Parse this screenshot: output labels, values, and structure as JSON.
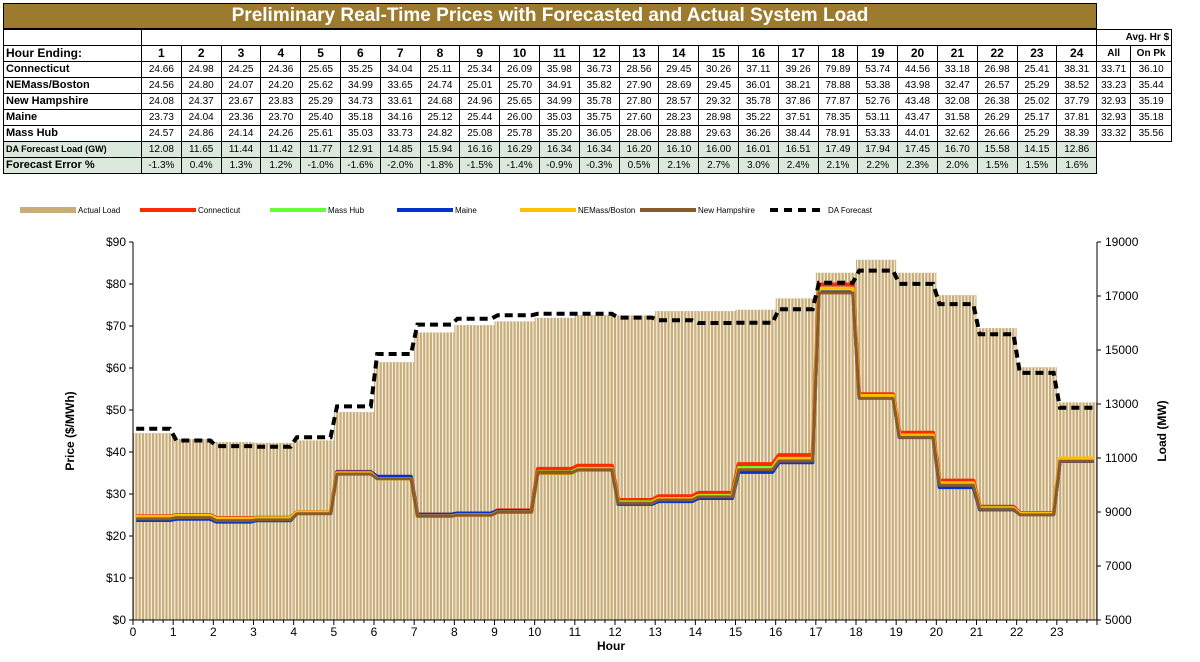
{
  "title": "Preliminary Real-Time Prices with Forecasted and Actual System Load",
  "table": {
    "avg_header": "Avg. Hr $",
    "hour_label": "Hour Ending:",
    "hours": [
      "1",
      "2",
      "3",
      "4",
      "5",
      "6",
      "7",
      "8",
      "9",
      "10",
      "11",
      "12",
      "13",
      "14",
      "15",
      "16",
      "17",
      "18",
      "19",
      "20",
      "21",
      "22",
      "23",
      "24"
    ],
    "avg_cols": [
      "All",
      "On Pk"
    ],
    "rows": [
      {
        "label": "Connecticut",
        "values": [
          "24.66",
          "24.98",
          "24.25",
          "24.36",
          "25.65",
          "35.25",
          "34.04",
          "25.11",
          "25.34",
          "26.09",
          "35.98",
          "36.73",
          "28.56",
          "29.45",
          "30.26",
          "37.11",
          "39.26",
          "79.89",
          "53.74",
          "44.56",
          "33.18",
          "26.98",
          "25.41",
          "38.31"
        ],
        "avg": [
          "33.71",
          "36.10"
        ]
      },
      {
        "label": "NEMass/Boston",
        "values": [
          "24.56",
          "24.80",
          "24.07",
          "24.20",
          "25.62",
          "34.99",
          "33.65",
          "24.74",
          "25.01",
          "25.70",
          "34.91",
          "35.82",
          "27.90",
          "28.69",
          "29.45",
          "36.01",
          "38.21",
          "78.88",
          "53.38",
          "43.98",
          "32.47",
          "26.57",
          "25.29",
          "38.52"
        ],
        "avg": [
          "33.23",
          "35.44"
        ]
      },
      {
        "label": "New Hampshire",
        "values": [
          "24.08",
          "24.37",
          "23.67",
          "23.83",
          "25.29",
          "34.73",
          "33.61",
          "24.68",
          "24.96",
          "25.65",
          "34.99",
          "35.78",
          "27.80",
          "28.57",
          "29.32",
          "35.78",
          "37.86",
          "77.87",
          "52.76",
          "43.48",
          "32.08",
          "26.38",
          "25.02",
          "37.79"
        ],
        "avg": [
          "32.93",
          "35.19"
        ]
      },
      {
        "label": "Maine",
        "values": [
          "23.73",
          "24.04",
          "23.36",
          "23.70",
          "25.40",
          "35.18",
          "34.16",
          "25.12",
          "25.44",
          "26.00",
          "35.03",
          "35.75",
          "27.60",
          "28.23",
          "28.98",
          "35.22",
          "37.51",
          "78.35",
          "53.11",
          "43.47",
          "31.58",
          "26.29",
          "25.17",
          "37.81"
        ],
        "avg": [
          "32.93",
          "35.18"
        ]
      },
      {
        "label": "Mass Hub",
        "values": [
          "24.57",
          "24.86",
          "24.14",
          "24.26",
          "25.61",
          "35.03",
          "33.73",
          "24.82",
          "25.08",
          "25.78",
          "35.20",
          "36.05",
          "28.06",
          "28.88",
          "29.63",
          "36.26",
          "38.44",
          "78.91",
          "53.33",
          "44.01",
          "32.62",
          "26.66",
          "25.29",
          "38.39"
        ],
        "avg": [
          "33.32",
          "35.56"
        ]
      }
    ],
    "forecast_load": {
      "label": "DA Forecast Load (GW)",
      "values": [
        "12.08",
        "11.65",
        "11.44",
        "11.42",
        "11.77",
        "12.91",
        "14.85",
        "15.94",
        "16.16",
        "16.29",
        "16.34",
        "16.34",
        "16.20",
        "16.10",
        "16.00",
        "16.01",
        "16.51",
        "17.49",
        "17.94",
        "17.45",
        "16.70",
        "15.58",
        "14.15",
        "12.86"
      ]
    },
    "forecast_error": {
      "label": "Forecast Error %",
      "values": [
        "-1.3%",
        "0.4%",
        "1.3%",
        "1.2%",
        "-1.0%",
        "-1.6%",
        "-2.0%",
        "-1.8%",
        "-1.5%",
        "-1.4%",
        "-0.9%",
        "-0.3%",
        "0.5%",
        "2.1%",
        "2.7%",
        "3.0%",
        "2.4%",
        "2.1%",
        "2.2%",
        "2.3%",
        "2.0%",
        "1.5%",
        "1.5%",
        "1.6%"
      ]
    }
  },
  "colors": {
    "title_bg": "#9c7a2e",
    "shaded_row": "#dbe9dc",
    "actual_load": "#c9ad78",
    "connecticut": "#ff2a00",
    "mass_hub": "#66ff33",
    "maine": "#0033cc",
    "nemass_boston": "#ffc000",
    "new_hampshire": "#8b5a2b",
    "da_forecast": "#000000"
  },
  "chart_data": {
    "type": "line",
    "xlabel": "Hour",
    "ylabel_left": "Price ($/MWh)",
    "ylabel_right": "Load (MW)",
    "ylim_left": [
      0,
      90
    ],
    "ylim_right": [
      5000,
      19000
    ],
    "y_ticks_left": [
      "$0",
      "$10",
      "$20",
      "$30",
      "$40",
      "$50",
      "$60",
      "$70",
      "$80",
      "$90"
    ],
    "y_ticks_right": [
      "5000",
      "7000",
      "9000",
      "11000",
      "13000",
      "15000",
      "17000",
      "19000"
    ],
    "x_ticks": [
      "0",
      "1",
      "2",
      "3",
      "4",
      "5",
      "6",
      "7",
      "8",
      "9",
      "10",
      "11",
      "12",
      "13",
      "14",
      "15",
      "16",
      "17",
      "18",
      "19",
      "20",
      "21",
      "22",
      "23"
    ],
    "x": [
      0,
      1,
      2,
      3,
      4,
      5,
      6,
      7,
      8,
      9,
      10,
      11,
      12,
      13,
      14,
      15,
      16,
      17,
      18,
      19,
      20,
      21,
      22,
      23
    ],
    "legend": [
      {
        "key": "actual_load",
        "name": "Actual Load"
      },
      {
        "key": "connecticut",
        "name": "Connecticut"
      },
      {
        "key": "mass_hub",
        "name": "Mass Hub"
      },
      {
        "key": "maine",
        "name": "Maine"
      },
      {
        "key": "nemass_boston",
        "name": "NEMass/Boston"
      },
      {
        "key": "new_hampshire",
        "name": "New Hampshire"
      },
      {
        "key": "da_forecast",
        "name": "DA Forecast"
      }
    ],
    "actual_load": [
      11920,
      11700,
      11590,
      11560,
      11650,
      12700,
      14550,
      15650,
      15920,
      16060,
      16190,
      16290,
      16280,
      16440,
      16440,
      16490,
      16910,
      17860,
      18340,
      17860,
      17030,
      15810,
      14360,
      13060
    ],
    "da_forecast": [
      12080,
      11650,
      11440,
      11420,
      11770,
      12910,
      14850,
      15940,
      16160,
      16290,
      16340,
      16340,
      16200,
      16100,
      16000,
      16010,
      16510,
      17490,
      17940,
      17450,
      16700,
      15580,
      14150,
      12860
    ],
    "series": [
      {
        "name": "Connecticut",
        "key": "connecticut",
        "values": [
          24.66,
          24.98,
          24.25,
          24.36,
          25.65,
          35.25,
          34.04,
          25.11,
          25.34,
          26.09,
          35.98,
          36.73,
          28.56,
          29.45,
          30.26,
          37.11,
          39.26,
          79.89,
          53.74,
          44.56,
          33.18,
          26.98,
          25.41,
          38.31
        ]
      },
      {
        "name": "Mass Hub",
        "key": "mass_hub",
        "values": [
          24.57,
          24.86,
          24.14,
          24.26,
          25.61,
          35.03,
          33.73,
          24.82,
          25.08,
          25.78,
          35.2,
          36.05,
          28.06,
          28.88,
          29.63,
          36.26,
          38.44,
          78.91,
          53.33,
          44.01,
          32.62,
          26.66,
          25.29,
          38.39
        ]
      },
      {
        "name": "Maine",
        "key": "maine",
        "values": [
          23.73,
          24.04,
          23.36,
          23.7,
          25.4,
          35.18,
          34.16,
          25.12,
          25.44,
          26.0,
          35.03,
          35.75,
          27.6,
          28.23,
          28.98,
          35.22,
          37.51,
          78.35,
          53.11,
          43.47,
          31.58,
          26.29,
          25.17,
          37.81
        ]
      },
      {
        "name": "NEMass/Boston",
        "key": "nemass_boston",
        "values": [
          24.56,
          24.8,
          24.07,
          24.2,
          25.62,
          34.99,
          33.65,
          24.74,
          25.01,
          25.7,
          34.91,
          35.82,
          27.9,
          28.69,
          29.45,
          36.01,
          38.21,
          78.88,
          53.38,
          43.98,
          32.47,
          26.57,
          25.29,
          38.52
        ]
      },
      {
        "name": "New Hampshire",
        "key": "new_hampshire",
        "values": [
          24.08,
          24.37,
          23.67,
          23.83,
          25.29,
          34.73,
          33.61,
          24.68,
          24.96,
          25.65,
          34.99,
          35.78,
          27.8,
          28.57,
          29.32,
          35.78,
          37.86,
          77.87,
          52.76,
          43.48,
          32.08,
          26.38,
          25.02,
          37.79
        ]
      }
    ]
  }
}
